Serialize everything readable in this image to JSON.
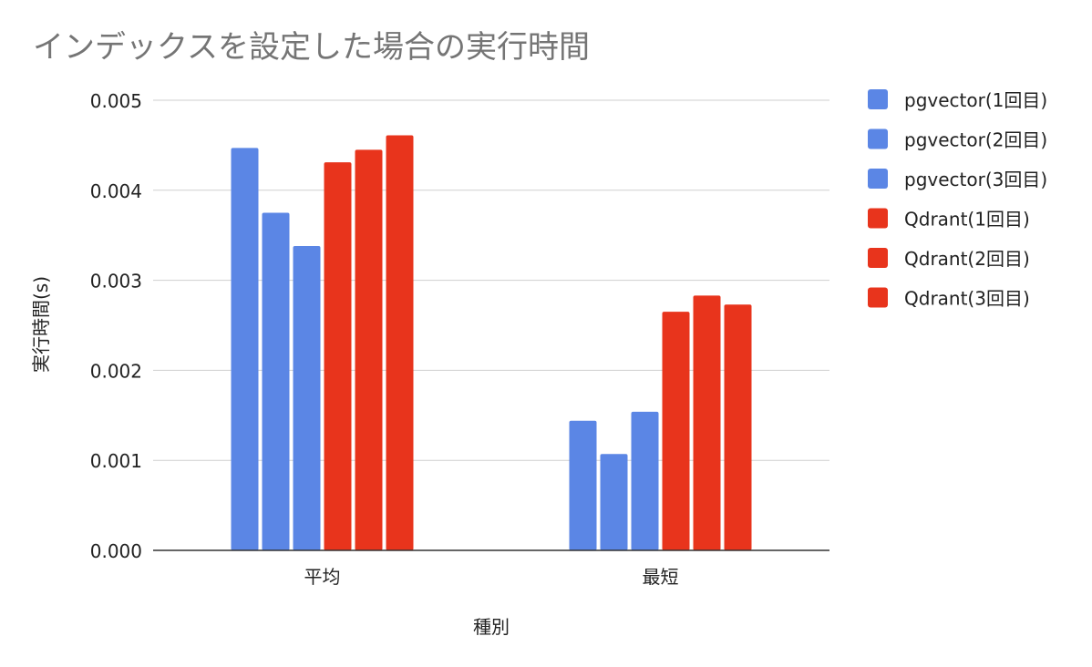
{
  "chart_data": {
    "type": "bar",
    "title": "インデックスを設定した場合の実行時間",
    "xlabel": "種別",
    "ylabel": "実行時間(s)",
    "categories": [
      "平均",
      "最短"
    ],
    "ylim": [
      0,
      0.005
    ],
    "yticks": [
      "0.000",
      "0.001",
      "0.002",
      "0.003",
      "0.004",
      "0.005"
    ],
    "grid": true,
    "legend_position": "right",
    "series": [
      {
        "name": "pgvector(1回目)",
        "color": "#5b86e5",
        "values": [
          0.00447,
          0.00144
        ]
      },
      {
        "name": "pgvector(2回目)",
        "color": "#5b86e5",
        "values": [
          0.00375,
          0.00107
        ]
      },
      {
        "name": "pgvector(3回目)",
        "color": "#5b86e5",
        "values": [
          0.00338,
          0.00154
        ]
      },
      {
        "name": "Qdrant(1回目)",
        "color": "#e8341c",
        "values": [
          0.00431,
          0.00265
        ]
      },
      {
        "name": "Qdrant(2回目)",
        "color": "#e8341c",
        "values": [
          0.00445,
          0.00283
        ]
      },
      {
        "name": "Qdrant(3回目)",
        "color": "#e8341c",
        "values": [
          0.00461,
          0.00273
        ]
      }
    ]
  }
}
